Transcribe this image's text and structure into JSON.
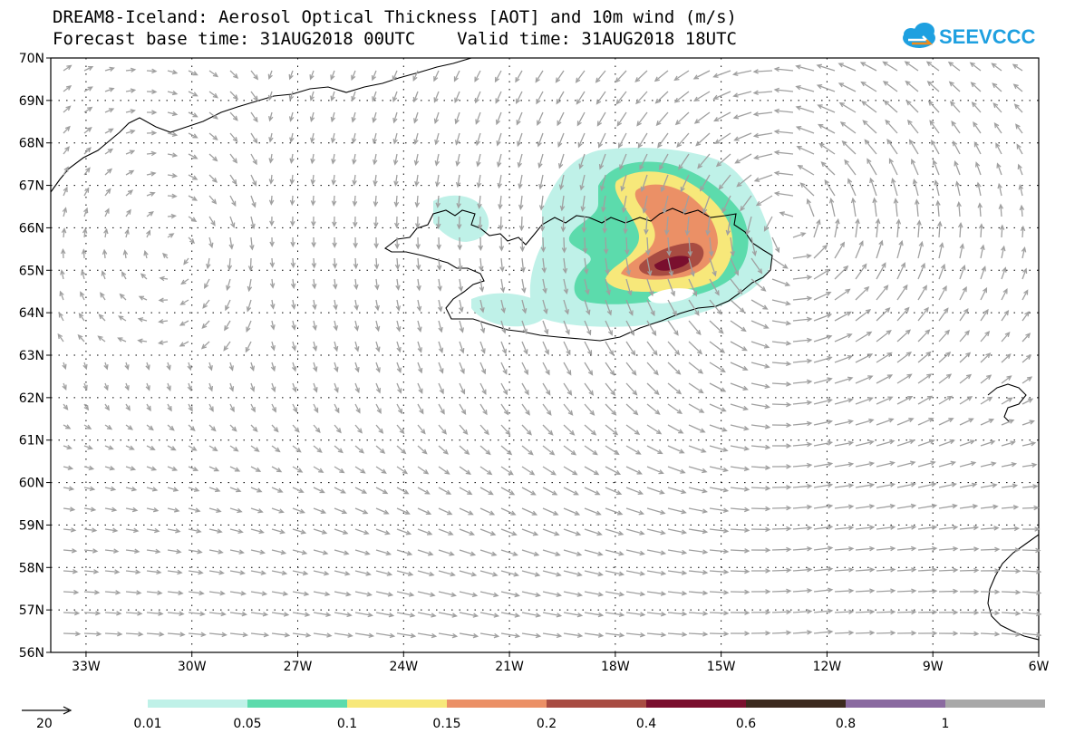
{
  "title_line1": "DREAM8-Iceland: Aerosol Optical Thickness [AOT] and 10m wind (m/s)",
  "title_line2": "Forecast base time: 31AUG2018 00UTC    Valid time: 31AUG2018 18UTC",
  "logo_text": "SEEVCCC",
  "map": {
    "lon_range": [
      -34,
      -6
    ],
    "lat_range": [
      56,
      70
    ],
    "lon_ticks": [
      "33W",
      "30W",
      "27W",
      "24W",
      "21W",
      "18W",
      "15W",
      "12W",
      "9W",
      "6W"
    ],
    "lat_ticks": [
      "70N",
      "69N",
      "68N",
      "67N",
      "66N",
      "65N",
      "64N",
      "63N",
      "62N",
      "61N",
      "60N",
      "59N",
      "58N",
      "57N",
      "56N"
    ],
    "gridlines": "dotted",
    "arrow_color": "#a0a0a0",
    "coast_color": "#000000"
  },
  "wind_reference": {
    "label": "20",
    "unit": "m/s"
  },
  "legend": {
    "levels": [
      "0.01",
      "0.05",
      "0.1",
      "0.15",
      "0.2",
      "0.4",
      "0.6",
      "0.8",
      "1"
    ],
    "colors": [
      "#bff1e8",
      "#5cdbac",
      "#f7e87a",
      "#eb9066",
      "#a84c42",
      "#7a0f2e",
      "#3c2a1e",
      "#8a6aa0",
      "#a8a8a8"
    ]
  }
}
